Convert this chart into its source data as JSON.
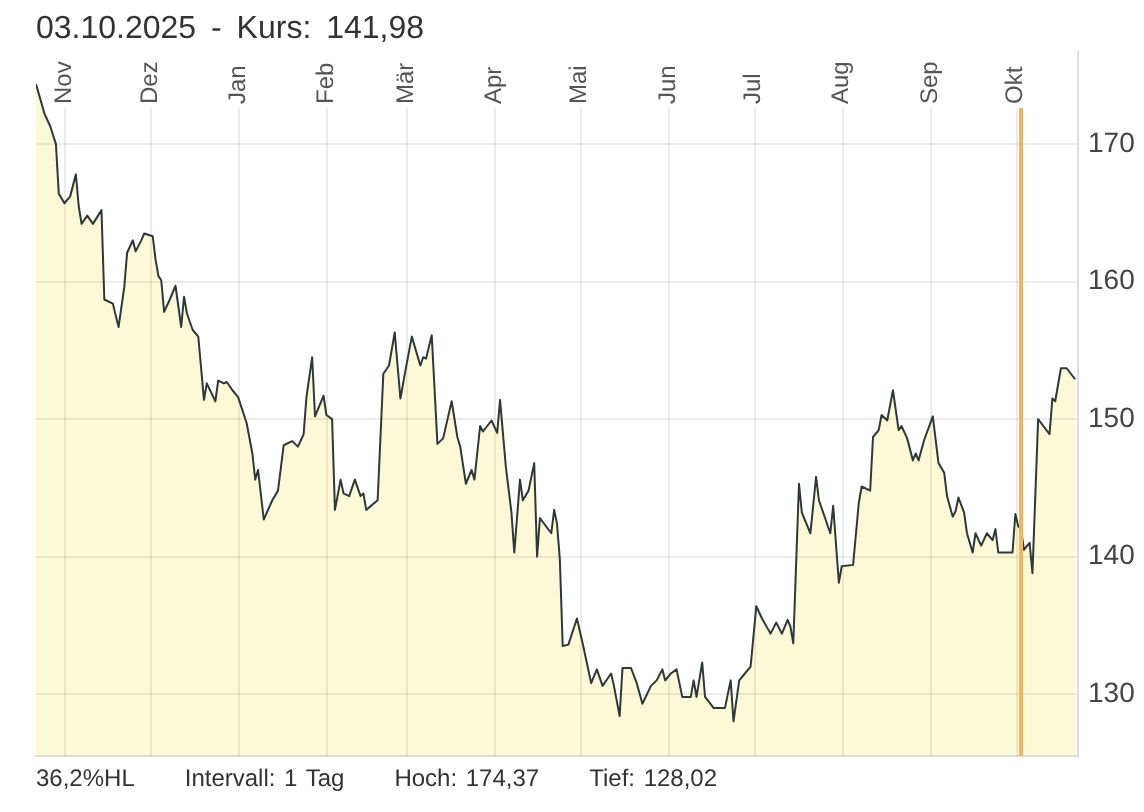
{
  "chart_data": {
    "type": "area",
    "title": "03.10.2025 - Kurs: 141,98",
    "color": "#2e3838",
    "x": [
      "2024-10-22",
      "2024-10-25",
      "2024-10-27",
      "2024-10-29",
      "2024-10-30",
      "2024-11-01",
      "2024-11-03",
      "2024-11-05",
      "2024-11-06",
      "2024-11-07",
      "2024-11-09",
      "2024-11-11",
      "2024-11-14",
      "2024-11-15",
      "2024-11-18",
      "2024-11-20",
      "2024-11-22",
      "2024-11-23",
      "2024-11-25",
      "2024-11-26",
      "2024-11-28",
      "2024-11-29",
      "2024-12-02",
      "2024-12-03",
      "2024-12-04",
      "2024-12-05",
      "2024-12-06",
      "2024-12-08",
      "2024-12-10",
      "2024-12-12",
      "2024-12-13",
      "2024-12-14",
      "2024-12-16",
      "2024-12-18",
      "2024-12-20",
      "2024-12-21",
      "2024-12-24",
      "2024-12-25",
      "2024-12-27",
      "2024-12-28",
      "2024-12-30",
      "2025-01-01",
      "2025-01-04",
      "2025-01-06",
      "2025-01-07",
      "2025-01-08",
      "2025-01-10",
      "2025-01-13",
      "2025-01-15",
      "2025-01-17",
      "2025-01-20",
      "2025-01-22",
      "2025-01-24",
      "2025-01-25",
      "2025-01-27",
      "2025-01-28",
      "2025-01-31",
      "2025-02-01",
      "2025-02-03",
      "2025-02-04",
      "2025-02-06",
      "2025-02-07",
      "2025-02-09",
      "2025-02-11",
      "2025-02-13",
      "2025-02-14",
      "2025-02-15",
      "2025-02-19",
      "2025-02-21",
      "2025-02-23",
      "2025-02-25",
      "2025-02-27",
      "2025-03-01",
      "2025-03-03",
      "2025-03-06",
      "2025-03-07",
      "2025-03-08",
      "2025-03-10",
      "2025-03-12",
      "2025-03-14",
      "2025-03-17",
      "2025-03-19",
      "2025-03-20",
      "2025-03-22",
      "2025-03-24",
      "2025-03-25",
      "2025-03-27",
      "2025-03-28",
      "2025-03-31",
      "2025-04-02",
      "2025-04-03",
      "2025-04-05",
      "2025-04-07",
      "2025-04-08",
      "2025-04-10",
      "2025-04-11",
      "2025-04-13",
      "2025-04-15",
      "2025-04-16",
      "2025-04-17",
      "2025-04-21",
      "2025-04-22",
      "2025-04-23",
      "2025-04-24",
      "2025-04-25",
      "2025-04-27",
      "2025-04-30",
      "2025-05-02",
      "2025-05-05",
      "2025-05-07",
      "2025-05-09",
      "2025-05-12",
      "2025-05-13",
      "2025-05-15",
      "2025-05-16",
      "2025-05-19",
      "2025-05-21",
      "2025-05-23",
      "2025-05-26",
      "2025-05-28",
      "2025-05-30",
      "2025-05-31",
      "2025-06-02",
      "2025-06-04",
      "2025-06-06",
      "2025-06-09",
      "2025-06-10",
      "2025-06-11",
      "2025-06-13",
      "2025-06-14",
      "2025-06-17",
      "2025-06-21",
      "2025-06-23",
      "2025-06-24",
      "2025-06-26",
      "2025-06-28",
      "2025-06-30",
      "2025-07-02",
      "2025-07-04",
      "2025-07-07",
      "2025-07-09",
      "2025-07-11",
      "2025-07-13",
      "2025-07-14",
      "2025-07-15",
      "2025-07-17",
      "2025-07-18",
      "2025-07-21",
      "2025-07-23",
      "2025-07-24",
      "2025-07-26",
      "2025-07-28",
      "2025-07-29",
      "2025-07-31",
      "2025-08-01",
      "2025-08-05",
      "2025-08-07",
      "2025-08-08",
      "2025-08-11",
      "2025-08-12",
      "2025-08-14",
      "2025-08-15",
      "2025-08-17",
      "2025-08-19",
      "2025-08-21",
      "2025-08-22",
      "2025-08-24",
      "2025-08-26",
      "2025-08-27",
      "2025-08-28",
      "2025-08-30",
      "2025-09-02",
      "2025-09-04",
      "2025-09-06",
      "2025-09-07",
      "2025-09-09",
      "2025-09-10",
      "2025-09-11",
      "2025-09-13",
      "2025-09-14",
      "2025-09-16",
      "2025-09-17",
      "2025-09-19",
      "2025-09-21",
      "2025-09-23",
      "2025-09-24",
      "2025-09-25",
      "2025-09-28",
      "2025-09-30",
      "2025-10-01",
      "2025-10-02",
      "2025-10-03",
      "2025-10-04",
      "2025-10-06",
      "2025-10-07",
      "2025-10-09",
      "2025-10-13",
      "2025-10-14",
      "2025-10-15",
      "2025-10-17",
      "2025-10-19",
      "2025-10-22"
    ],
    "values": [
      174.37,
      172.2,
      171.3,
      170.0,
      166.4,
      165.7,
      166.2,
      167.8,
      165.5,
      164.2,
      164.8,
      164.2,
      165.2,
      158.7,
      158.4,
      156.7,
      159.6,
      162.1,
      163.0,
      162.2,
      163.0,
      163.5,
      163.3,
      161.6,
      160.4,
      160.1,
      157.8,
      158.7,
      159.7,
      156.7,
      158.9,
      157.7,
      156.5,
      156.0,
      151.4,
      152.6,
      151.3,
      152.8,
      152.6,
      152.7,
      152.1,
      151.6,
      149.7,
      147.5,
      145.6,
      146.3,
      142.7,
      144.1,
      144.8,
      148.1,
      148.4,
      148.0,
      148.9,
      151.6,
      154.5,
      150.2,
      151.7,
      150.3,
      150.0,
      143.4,
      145.6,
      144.6,
      144.4,
      145.6,
      144.4,
      144.6,
      143.4,
      144.1,
      153.3,
      153.9,
      156.3,
      151.5,
      153.8,
      156.0,
      153.9,
      154.5,
      154.4,
      156.1,
      148.2,
      148.6,
      151.3,
      148.7,
      148.0,
      145.3,
      146.3,
      145.6,
      149.5,
      149.1,
      149.9,
      149.0,
      151.4,
      146.6,
      143.2,
      140.3,
      145.6,
      144.1,
      144.8,
      146.8,
      140.0,
      142.8,
      141.7,
      143.4,
      142.4,
      139.8,
      133.5,
      133.6,
      135.5,
      133.7,
      130.8,
      131.8,
      130.6,
      131.5,
      130.6,
      128.4,
      131.9,
      131.9,
      130.8,
      129.3,
      130.6,
      131.0,
      131.8,
      131.0,
      131.5,
      131.8,
      129.8,
      129.8,
      131.0,
      129.8,
      132.3,
      129.8,
      129.0,
      129.0,
      131.0,
      128.02,
      131.0,
      131.5,
      132.0,
      136.4,
      135.5,
      134.4,
      135.2,
      134.4,
      135.4,
      134.9,
      133.7,
      145.3,
      143.2,
      141.7,
      145.8,
      144.1,
      142.9,
      141.7,
      143.7,
      138.1,
      139.3,
      139.4,
      143.9,
      145.1,
      144.8,
      148.7,
      149.2,
      150.3,
      149.9,
      152.1,
      149.2,
      149.5,
      148.6,
      147.0,
      147.5,
      147.0,
      148.5,
      150.2,
      146.8,
      146.1,
      144.4,
      142.9,
      143.3,
      144.3,
      143.2,
      141.7,
      140.3,
      141.7,
      140.8,
      141.7,
      141.2,
      142.0,
      140.3,
      140.3,
      140.3,
      143.1,
      142.2,
      141.98,
      140.5,
      141.0,
      138.8,
      150.0,
      148.9,
      151.5,
      151.3,
      153.7,
      153.7,
      152.9
    ],
    "xlim": [
      "2024-10-22",
      "2025-10-23"
    ],
    "xticks": [
      {
        "value": "2024-11-01",
        "label": "Nov"
      },
      {
        "value": "2024-12-01",
        "label": "Dez"
      },
      {
        "value": "2025-01-01",
        "label": "Jan"
      },
      {
        "value": "2025-02-01",
        "label": "Feb"
      },
      {
        "value": "2025-03-01",
        "label": "Mär"
      },
      {
        "value": "2025-04-01",
        "label": "Apr"
      },
      {
        "value": "2025-05-01",
        "label": "Mai"
      },
      {
        "value": "2025-06-01",
        "label": "Jun"
      },
      {
        "value": "2025-07-01",
        "label": "Jul"
      },
      {
        "value": "2025-08-01",
        "label": "Aug"
      },
      {
        "value": "2025-09-01",
        "label": "Sep"
      },
      {
        "value": "2025-10-01",
        "label": "Okt"
      }
    ],
    "ylim": [
      125.5,
      176.7
    ],
    "yticks": [
      130,
      140,
      150,
      160,
      170
    ],
    "grid": true,
    "ref_lines": [
      {
        "axis": "x",
        "value": "2025-10-03",
        "color": "#f4b263"
      }
    ],
    "annotations": [
      "36,2%HL",
      "Intervall: 1 Tag",
      "Hoch: 174,37",
      "Tief: 128,02"
    ]
  }
}
